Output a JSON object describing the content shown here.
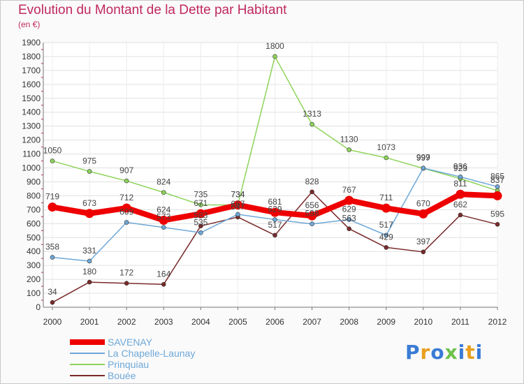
{
  "header": {
    "title": "Evolution du Montant de la Dette par Habitant",
    "unit": "(en €)"
  },
  "logo": {
    "text": "Proxiti",
    "colors": [
      "#3a7bd5",
      "#e8a020",
      "#3a7bd5",
      "#6cc24a",
      "#3a7bd5",
      "#e8a020",
      "#3a7bd5"
    ]
  },
  "chart_data": {
    "type": "line",
    "title": "Evolution du Montant de la Dette par Habitant",
    "ylabel": "(en €)",
    "xlabel": "",
    "x": [
      "2000",
      "2001",
      "2002",
      "2003",
      "2004",
      "2005",
      "2006",
      "2007",
      "2008",
      "2009",
      "2010",
      "2011",
      "2012"
    ],
    "ylim": [
      0,
      1900
    ],
    "yticks": [
      0,
      100,
      200,
      300,
      400,
      500,
      600,
      700,
      800,
      900,
      1000,
      1100,
      1200,
      1300,
      1400,
      1500,
      1600,
      1700,
      1800,
      1900
    ],
    "grid": true,
    "legend": "bottom-left",
    "series": [
      {
        "name": "SAVENAY",
        "color": "#ee0000",
        "values": [
          719,
          673,
          712,
          624,
          671,
          734,
          681,
          656,
          767,
          711,
          670,
          811,
          800
        ],
        "labels": [
          "719",
          "673",
          "712",
          "624",
          "671",
          "734",
          "681",
          "656",
          "767",
          "711",
          "670",
          "811",
          ""
        ]
      },
      {
        "name": "La Chapelle-Launay",
        "color": "#6ea8d8",
        "values": [
          358,
          331,
          609,
          573,
          535,
          667,
          629,
          598,
          629,
          517,
          999,
          936,
          865
        ],
        "labels": [
          "358",
          "331",
          "609",
          "573",
          "535",
          "667",
          "629",
          "598",
          "629",
          "517",
          "999",
          "936",
          "865"
        ]
      },
      {
        "name": "Prinquiau",
        "color": "#8ed45a",
        "values": [
          1050,
          975,
          907,
          824,
          735,
          734,
          1800,
          1313,
          1130,
          1073,
          997,
          923,
          837
        ],
        "labels": [
          "1050",
          "975",
          "907",
          "824",
          "735",
          "734",
          "1800",
          "1313",
          "1130",
          "1073",
          "997",
          "923",
          "837"
        ]
      },
      {
        "name": "Bouée",
        "color": "#7a2a2a",
        "values": [
          34,
          180,
          172,
          164,
          583,
          647,
          517,
          828,
          563,
          429,
          397,
          662,
          595
        ],
        "labels": [
          "34",
          "180",
          "172",
          "164",
          "583",
          "647",
          "517",
          "828",
          "563",
          "429",
          "397",
          "662",
          "595"
        ]
      }
    ]
  }
}
